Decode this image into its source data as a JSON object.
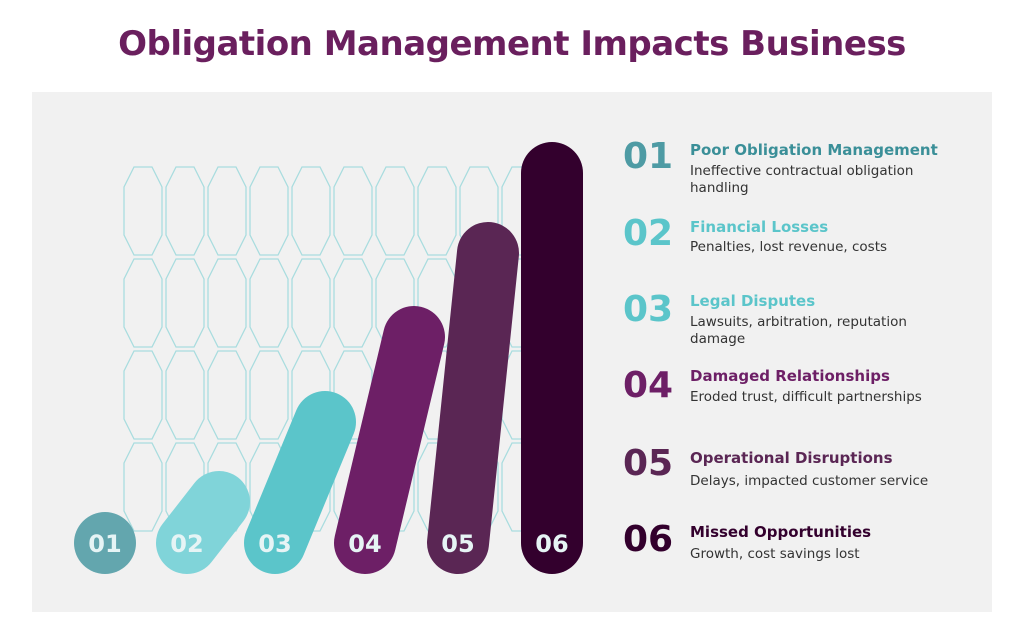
{
  "title": "Obligation Management Impacts Business",
  "items": [
    {
      "number": "01",
      "heading": "Poor Obligation Management",
      "description": "Ineffective contractual obligation handling"
    },
    {
      "number": "02",
      "heading": "Financial Losses",
      "description": "Penalties, lost revenue, costs"
    },
    {
      "number": "03",
      "heading": "Legal Disputes",
      "description": "Lawsuits, arbitration, reputation damage"
    },
    {
      "number": "04",
      "heading": "Damaged Relationships",
      "description": "Eroded trust, difficult partnerships"
    },
    {
      "number": "05",
      "heading": "Operational Disruptions",
      "description": "Delays, impacted customer service"
    },
    {
      "number": "06",
      "heading": "Missed Opportunities",
      "description": "Growth, cost savings lost"
    }
  ]
}
